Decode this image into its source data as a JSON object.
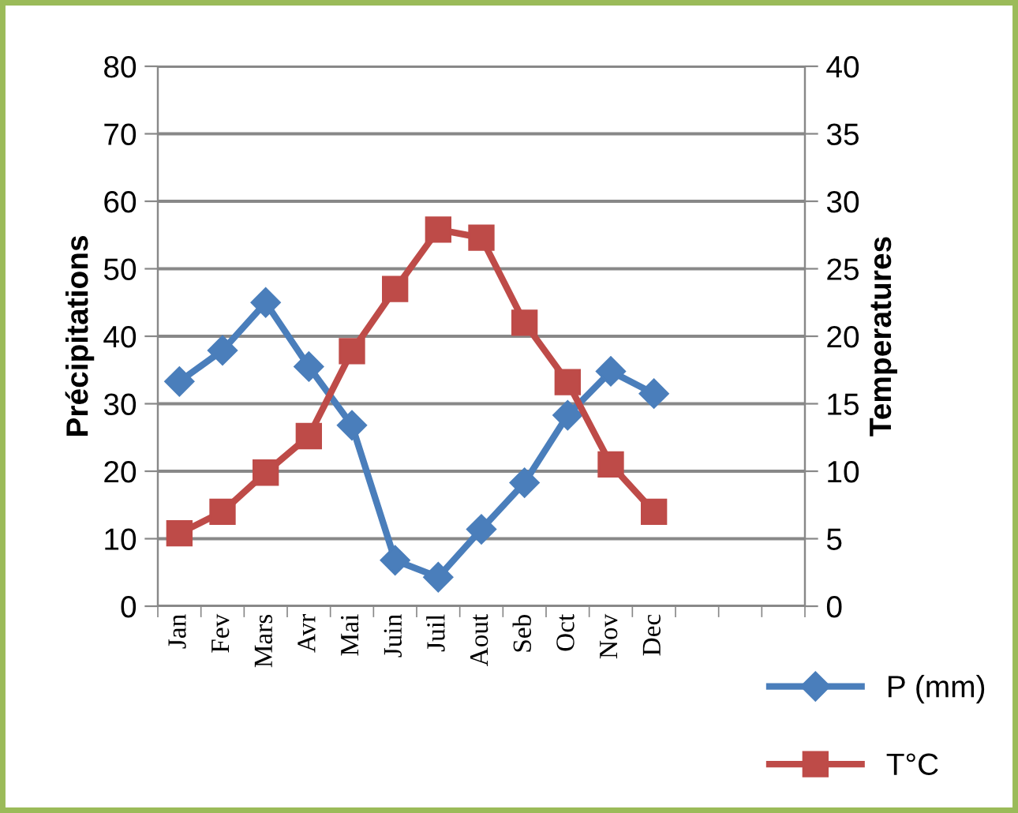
{
  "chart_data": {
    "type": "line",
    "ylabel": "Précipitations",
    "y2label": "Temperatures",
    "categories": [
      "Jan",
      "Fev",
      "Mars",
      "Avr",
      "Mai",
      "Juin",
      "Juil",
      "Aout",
      "Seb",
      "Oct",
      "Nov",
      "Dec",
      null,
      null,
      null
    ],
    "series": [
      {
        "name": "P (mm)",
        "color": "#4a7ebb",
        "marker": "diamond",
        "values": [
          33.3,
          37.9,
          45,
          35.5,
          26.8,
          6.8,
          4.3,
          11.4,
          18.3,
          28.3,
          34.8,
          31.5,
          null,
          null,
          null
        ]
      },
      {
        "name": "T°C",
        "color": "#be4b48",
        "marker": "square",
        "axis": "y2",
        "values": [
          5.4,
          7,
          9.9,
          12.6,
          18.9,
          23.5,
          27.9,
          27.3,
          21,
          16.6,
          10.5,
          7,
          null,
          null,
          null
        ]
      }
    ],
    "ylim": [
      0,
      80
    ],
    "yticks": [
      0,
      10,
      20,
      30,
      40,
      50,
      60,
      70,
      80
    ],
    "y2lim": [
      0,
      40
    ],
    "y2ticks": [
      0,
      5,
      10,
      15,
      20,
      25,
      30,
      35,
      40
    ],
    "grid": "y",
    "legend": "bottom right",
    "line_style": "solid"
  }
}
